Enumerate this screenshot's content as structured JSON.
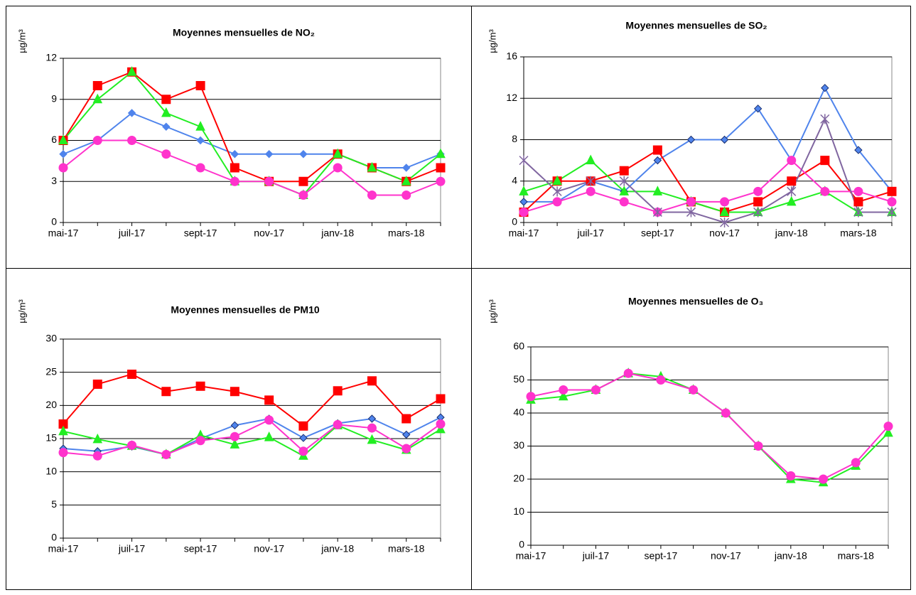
{
  "chart_data": [
    {
      "type": "line",
      "title": "Moyennes mensuelles de NO₂",
      "y_label": "µg/m³",
      "categories": [
        "mai-17",
        null,
        "juil-17",
        null,
        "sept-17",
        null,
        "nov-17",
        null,
        "janv-18",
        null,
        "mars-18",
        null
      ],
      "series": [
        {
          "color": "#4f84ec",
          "marker": "diamond",
          "values": [
            5,
            6,
            8,
            7,
            6,
            5,
            5,
            5,
            5,
            4,
            4,
            5
          ]
        },
        {
          "color": "#ff0000",
          "marker": "square",
          "values": [
            6,
            10,
            11,
            9,
            10,
            4,
            3,
            3,
            5,
            4,
            3,
            4
          ]
        },
        {
          "color": "#22ee22",
          "marker": "triangle",
          "values": [
            6,
            9,
            11,
            8,
            7,
            3,
            3,
            2,
            5,
            4,
            3,
            5
          ]
        },
        {
          "color": "#ff33cc",
          "marker": "circle",
          "values": [
            4,
            6,
            6,
            5,
            4,
            3,
            3,
            2,
            4,
            2,
            2,
            3
          ]
        }
      ],
      "ylim": [
        0,
        12
      ],
      "yticks": [
        0,
        3,
        6,
        9,
        12
      ],
      "grid": true
    },
    {
      "type": "line",
      "title": "Moyennes mensuelles de SO₂",
      "y_label": "µg/m³",
      "categories": [
        "mai-17",
        null,
        "juil-17",
        null,
        "sept-17",
        null,
        "nov-17",
        null,
        "janv-18",
        null,
        "mars-18",
        null
      ],
      "series": [
        {
          "color": "#4f84ec",
          "edgecolor": "#1a2f6e",
          "marker": "diamond",
          "values": [
            2,
            2,
            4,
            3,
            6,
            8,
            8,
            11,
            6,
            13,
            7,
            3
          ]
        },
        {
          "color": "#ff0000",
          "marker": "square",
          "values": [
            1,
            4,
            4,
            5,
            7,
            2,
            1,
            2,
            4,
            6,
            2,
            3
          ]
        },
        {
          "color": "#22ee22",
          "marker": "triangle",
          "values": [
            3,
            4,
            6,
            3,
            3,
            2,
            1,
            1,
            2,
            3,
            1,
            1
          ]
        },
        {
          "color": "#ff33cc",
          "marker": "circle",
          "values": [
            1,
            2,
            3,
            2,
            1,
            2,
            2,
            3,
            6,
            3,
            3,
            2
          ]
        },
        {
          "color": "#8066a0",
          "marker": "star",
          "values": [
            6,
            3,
            4,
            4,
            1,
            1,
            0,
            1,
            3,
            10,
            1,
            1
          ]
        }
      ],
      "ylim": [
        0,
        16
      ],
      "yticks": [
        0,
        4,
        8,
        12,
        16
      ],
      "grid": true
    },
    {
      "type": "line",
      "title": "Moyennes mensuelles de PM10",
      "y_label": "µg/m³",
      "categories": [
        "mai-17",
        null,
        "juil-17",
        null,
        "sept-17",
        null,
        "nov-17",
        null,
        "janv-18",
        null,
        "mars-18",
        null
      ],
      "series": [
        {
          "color": "#ff0000",
          "marker": "square",
          "values": [
            17.2,
            23.2,
            24.7,
            22.1,
            22.9,
            22.1,
            20.8,
            16.9,
            22.2,
            23.7,
            18,
            21
          ]
        },
        {
          "color": "#4f84ec",
          "edgecolor": "#1a2f6e",
          "marker": "diamond",
          "values": [
            13.5,
            13.1,
            13.8,
            12.6,
            15,
            17,
            18,
            15.1,
            17.3,
            18,
            15.6,
            18.2
          ]
        },
        {
          "color": "#22ee22",
          "marker": "triangle",
          "values": [
            16.1,
            14.9,
            13.9,
            12.6,
            15.5,
            14.1,
            15.2,
            12.4,
            17,
            14.8,
            13.3,
            16.4
          ]
        },
        {
          "color": "#ff33cc",
          "marker": "circle",
          "values": [
            12.9,
            12.4,
            14,
            12.6,
            14.7,
            15.3,
            17.8,
            13.1,
            17.1,
            16.6,
            13.5,
            17.2
          ]
        }
      ],
      "ylim": [
        0,
        30
      ],
      "yticks": [
        0,
        5,
        10,
        15,
        20,
        25,
        30
      ],
      "grid": true
    },
    {
      "type": "line",
      "title": "Moyennes mensuelles de O₃",
      "y_label": "µg/m³",
      "categories": [
        "mai-17",
        null,
        "juil-17",
        null,
        "sept-17",
        null,
        "nov-17",
        null,
        "janv-18",
        null,
        "mars-18",
        null
      ],
      "series": [
        {
          "color": "#22ee22",
          "marker": "triangle",
          "values": [
            44,
            45,
            47,
            52,
            51,
            47,
            40,
            30,
            20,
            19,
            24,
            34
          ]
        },
        {
          "color": "#ff33cc",
          "marker": "circle",
          "values": [
            45,
            47,
            47,
            52,
            50,
            47,
            40,
            30,
            21,
            20,
            25,
            36
          ]
        }
      ],
      "ylim": [
        0,
        60
      ],
      "yticks": [
        0,
        10,
        20,
        30,
        40,
        50,
        60
      ],
      "grid": true
    }
  ]
}
